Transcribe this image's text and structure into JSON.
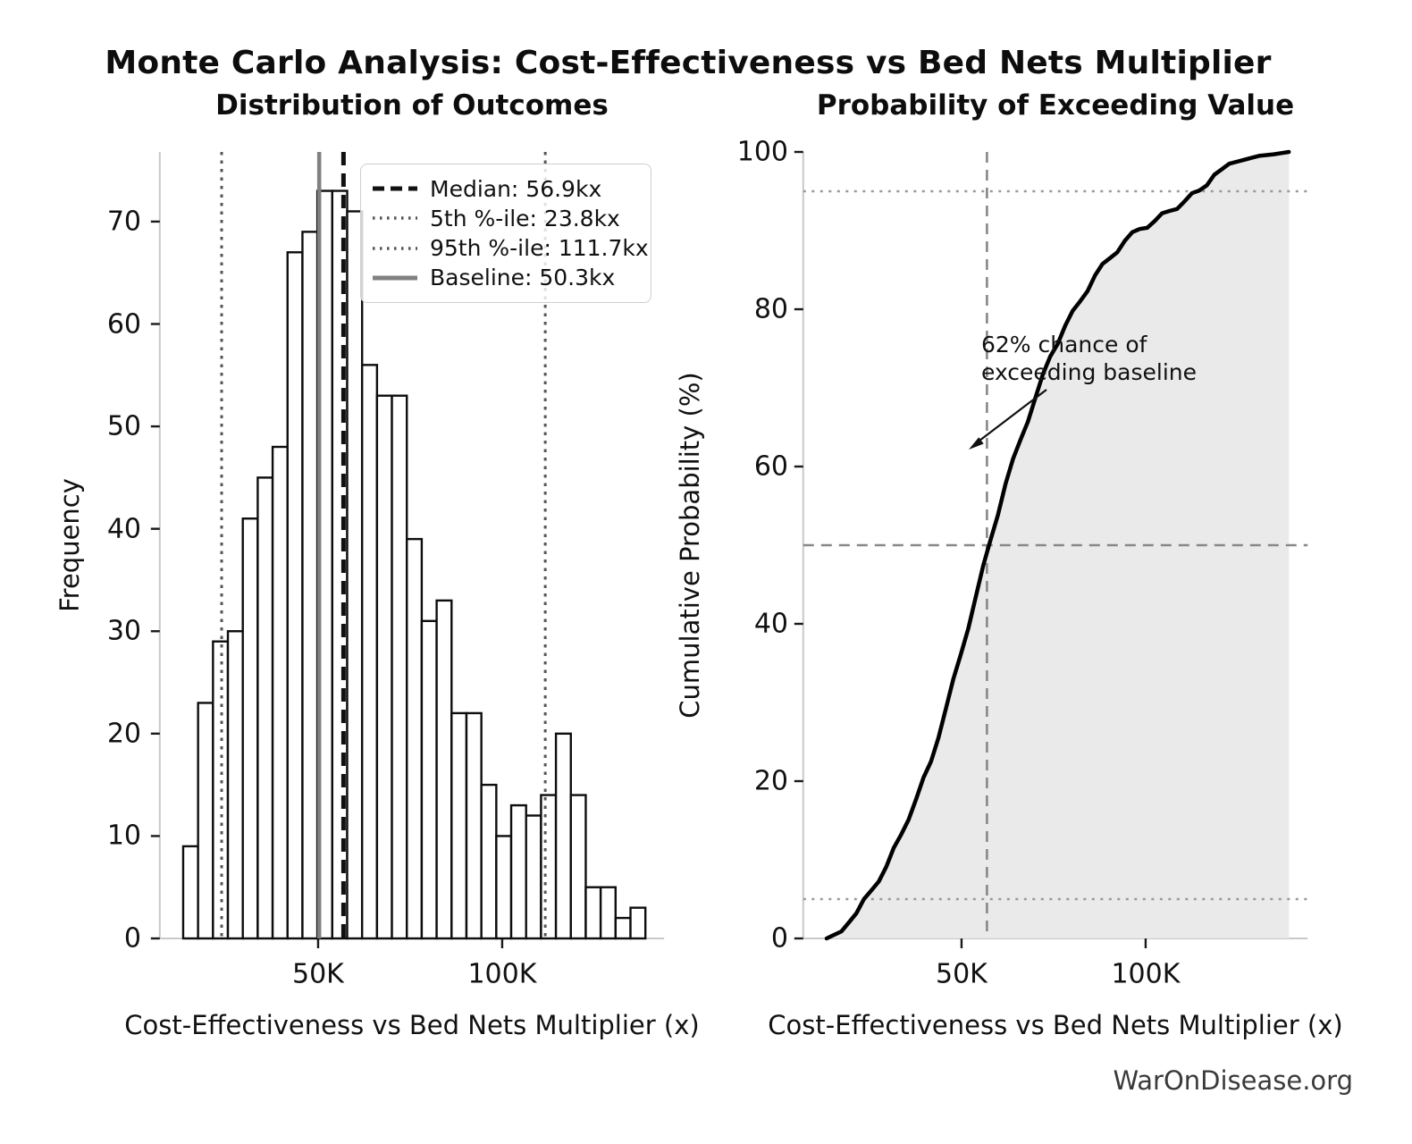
{
  "page": {
    "title": "Monte Carlo Analysis: Cost-Effectiveness vs Bed Nets Multiplier",
    "footer": "WarOnDisease.org",
    "background": "#ffffff"
  },
  "chart_data": [
    {
      "type": "bar",
      "title": "Distribution of Outcomes",
      "xlabel": "Cost-Effectiveness vs Bed Nets Multiplier (x)",
      "ylabel": "Frequency",
      "x_unit_suffix": "kx",
      "xlim": [
        7,
        144
      ],
      "ylim": [
        0,
        76.8
      ],
      "grid": false,
      "x_ticks": [
        {
          "value": 50,
          "label": "50K"
        },
        {
          "value": 100,
          "label": "100K"
        }
      ],
      "y_ticks": [
        0,
        10,
        20,
        30,
        40,
        50,
        60,
        70
      ],
      "bins": {
        "start": 13.35,
        "width": 4.05,
        "counts": [
          9,
          23,
          29,
          30,
          41,
          45,
          48,
          67,
          69,
          73,
          73,
          71,
          56,
          53,
          53,
          39,
          31,
          33,
          22,
          22,
          15,
          10,
          13,
          12,
          14,
          20,
          14,
          5,
          5,
          2,
          3
        ]
      },
      "bar_fill": "#ffffff",
      "bar_edge": "#0d0d0d",
      "legend_position": "upper right",
      "reference_lines": [
        {
          "name": "median",
          "value": 56.9,
          "style": "dashed",
          "color": "#111111",
          "label": "Median: 56.9kx"
        },
        {
          "name": "p5",
          "value": 23.8,
          "style": "dotted",
          "color": "#555555",
          "label": "5th %-ile: 23.8kx"
        },
        {
          "name": "p95",
          "value": 111.7,
          "style": "dotted",
          "color": "#555555",
          "label": "95th %-ile: 111.7kx"
        },
        {
          "name": "baseline",
          "value": 50.3,
          "style": "solid",
          "color": "#808080",
          "label": "Baseline: 50.3kx"
        }
      ]
    },
    {
      "type": "line",
      "title": "Probability of Exceeding Value",
      "xlabel": "Cost-Effectiveness vs Bed Nets Multiplier (x)",
      "ylabel": "Cumulative Probability (%)",
      "xlim": [
        7,
        144
      ],
      "ylim": [
        0,
        100
      ],
      "grid": false,
      "x_ticks": [
        {
          "value": 50,
          "label": "50K"
        },
        {
          "value": 100,
          "label": "100K"
        }
      ],
      "y_ticks": [
        0,
        20,
        40,
        60,
        80,
        100
      ],
      "x": [
        13.35,
        17.4,
        21.45,
        25.5,
        29.55,
        33.6,
        37.65,
        41.7,
        45.75,
        49.8,
        53.85,
        57.9,
        61.95,
        66.0,
        70.05,
        74.1,
        78.15,
        82.2,
        86.25,
        90.3,
        94.35,
        98.4,
        102.45,
        106.5,
        110.55,
        114.6,
        118.65,
        122.7,
        126.75,
        130.8,
        134.85,
        138.9
      ],
      "y": [
        0.0,
        0.9,
        3.2,
        6.1,
        9.1,
        13.2,
        17.7,
        22.5,
        29.2,
        36.1,
        43.4,
        50.7,
        57.8,
        63.4,
        68.7,
        74.0,
        77.9,
        81.0,
        84.3,
        86.5,
        88.7,
        90.2,
        91.2,
        92.5,
        93.7,
        95.1,
        97.1,
        98.5,
        99.0,
        99.5,
        99.7,
        100.0
      ],
      "line_color": "#000000",
      "fill_color": "#e9e9e9",
      "reference_lines": [
        {
          "name": "p50-line",
          "orientation": "h",
          "value": 50,
          "style": "dashed",
          "color": "#888888"
        },
        {
          "name": "p95-line",
          "orientation": "h",
          "value": 95,
          "style": "dotted",
          "color": "#999999"
        },
        {
          "name": "p5-line",
          "orientation": "h",
          "value": 5,
          "style": "dotted",
          "color": "#999999"
        },
        {
          "name": "median-line",
          "orientation": "v",
          "value": 56.9,
          "style": "dashed",
          "color": "#888888"
        }
      ],
      "annotation": {
        "text_lines": [
          "62% chance of",
          "exceeding baseline"
        ],
        "percent_exceeding_baseline": 62
      }
    }
  ]
}
